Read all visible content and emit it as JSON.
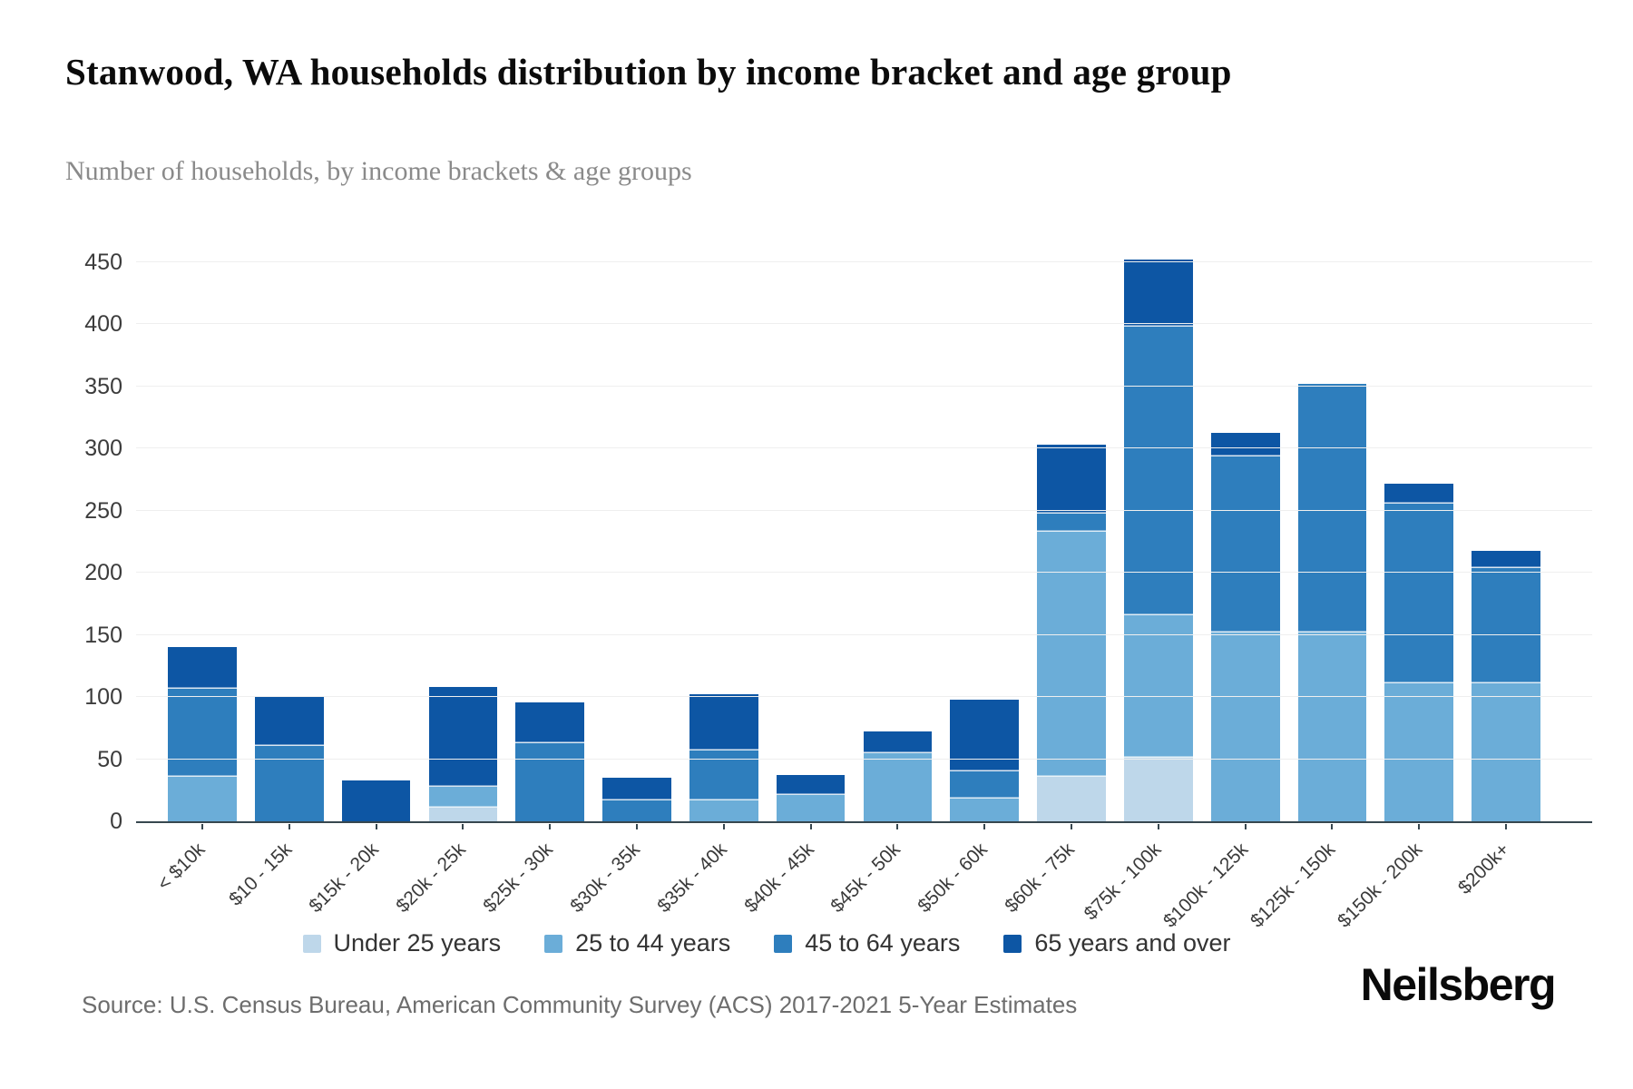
{
  "title": "Stanwood, WA households distribution by income bracket and age group",
  "subtitle": "Number of households, by income brackets & age groups",
  "source": "Source: U.S. Census Bureau, American Community Survey (ACS) 2017-2021 5-Year Estimates",
  "logo": "Neilsberg",
  "chart_data": {
    "type": "bar",
    "stacked": true,
    "title": "Stanwood, WA households distribution by income bracket and age group",
    "subtitle": "Number of households, by income brackets & age groups",
    "xlabel": "",
    "ylabel": "",
    "ylim": [
      0,
      450
    ],
    "yticks": [
      0,
      50,
      100,
      150,
      200,
      250,
      300,
      350,
      400,
      450
    ],
    "grid": true,
    "legend_position": "bottom",
    "grid_color": "#efefef",
    "axis_color": "#37474f",
    "categories": [
      "< $10k",
      "$10 - 15k",
      "$15k - 20k",
      "$20k - 25k",
      "$25k - 30k",
      "$30k - 35k",
      "$35k - 40k",
      "$40k - 45k",
      "$45k - 50k",
      "$50k - 60k",
      "$60k - 75k",
      "$75k - 100k",
      "$100k - 125k",
      "$125k - 150k",
      "$150k - 200k",
      "$200k+"
    ],
    "series": [
      {
        "name": "Under 25 years",
        "color": "#bed7ea",
        "values": [
          0,
          0,
          0,
          11,
          0,
          0,
          0,
          0,
          0,
          0,
          36,
          51,
          0,
          0,
          0,
          0
        ]
      },
      {
        "name": "25 to 44 years",
        "color": "#6badd8",
        "values": [
          36,
          0,
          0,
          17,
          0,
          0,
          17,
          21,
          55,
          18,
          197,
          115,
          152,
          152,
          111,
          111
        ]
      },
      {
        "name": "45 to 64 years",
        "color": "#2e7ebd",
        "values": [
          71,
          61,
          0,
          0,
          63,
          17,
          40,
          0,
          0,
          22,
          15,
          232,
          142,
          200,
          145,
          93
        ]
      },
      {
        "name": "65 years and over",
        "color": "#0d56a4",
        "values": [
          33,
          40,
          33,
          80,
          33,
          18,
          45,
          16,
          17,
          58,
          55,
          54,
          19,
          0,
          16,
          14
        ]
      }
    ],
    "totals": [
      140,
      101,
      33,
      108,
      96,
      35,
      102,
      37,
      72,
      98,
      303,
      452,
      313,
      352,
      272,
      218
    ]
  }
}
